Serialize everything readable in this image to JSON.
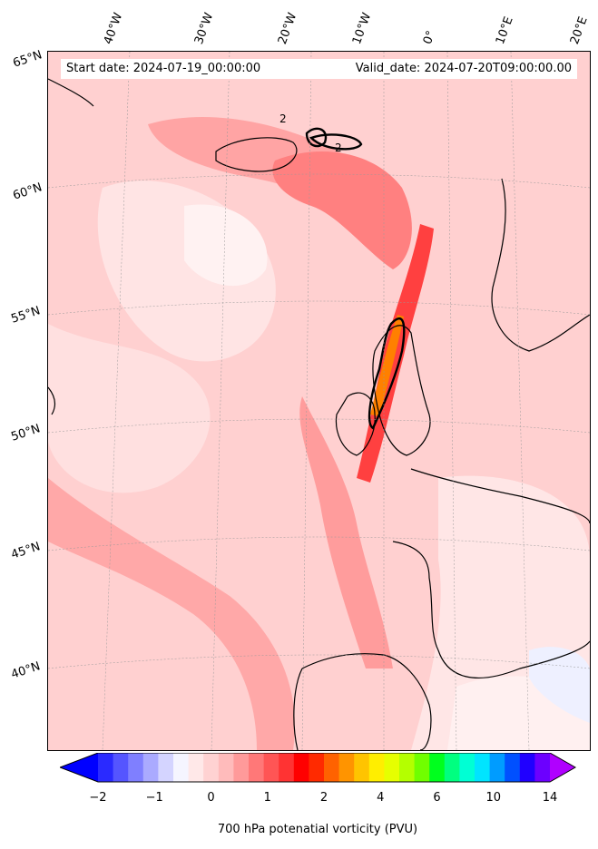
{
  "header": {
    "start_date": "Start date: 2024-07-19_00:00:00",
    "valid_date": "Valid_date: 2024-07-20T09:00:00.00"
  },
  "axes": {
    "lon_labels": [
      "40°W",
      "30°W",
      "20°W",
      "10°W",
      "0°",
      "10°E",
      "20°E"
    ],
    "lat_labels": [
      "65°N",
      "60°N",
      "55°N",
      "50°N",
      "45°N",
      "40°N"
    ]
  },
  "contour_labels": [
    "2",
    "2"
  ],
  "colorbar": {
    "title": "700 hPa potenatial vorticity (PVU)",
    "ticks": [
      "−2",
      "−1",
      "0",
      "1",
      "2",
      "4",
      "6",
      "10",
      "14"
    ],
    "colors": [
      "#0000ff",
      "#2a2aff",
      "#5555ff",
      "#7f7fff",
      "#aaaaff",
      "#d4d4ff",
      "#f5f5ff",
      "#ffe8e8",
      "#ffd2d2",
      "#ffbbbb",
      "#ff9a9a",
      "#ff7878",
      "#ff5555",
      "#ff3333",
      "#ff0000",
      "#ff2a00",
      "#ff6200",
      "#ff9400",
      "#ffc400",
      "#ffee00",
      "#e6ff00",
      "#b4ff00",
      "#70ff00",
      "#00ff1e",
      "#00ff80",
      "#00ffd4",
      "#00e4ff",
      "#009cff",
      "#0050ff",
      "#2000ff",
      "#6c00ff",
      "#b000ff"
    ]
  }
}
